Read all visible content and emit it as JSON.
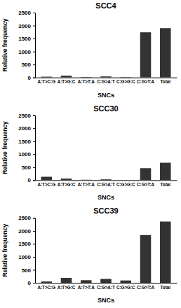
{
  "chart_data": [
    {
      "type": "bar",
      "title": "SCC4",
      "x_label": "SNCs",
      "y_label": "Relative frequency",
      "categories": [
        "A:T>C:G",
        "A:T>G:C",
        "A:T>T:A",
        "C:G>A:T",
        "C:G>G:C",
        "C:G>T:A",
        "Total"
      ],
      "values": [
        30,
        70,
        20,
        40,
        15,
        1740,
        1900
      ],
      "color": "#333333",
      "ylim": [
        0,
        2500
      ],
      "yticks": [
        0,
        500,
        1000,
        1500,
        2000,
        2500
      ],
      "grid": false
    },
    {
      "type": "bar",
      "title": "SCC30",
      "x_label": "SNCs",
      "y_label": "Relative frequency",
      "categories": [
        "A:T>C:G",
        "A:T>G:C",
        "A:T>T:A",
        "C:G>A:T",
        "C:G>G:C",
        "C:G>T:A",
        "Total"
      ],
      "values": [
        130,
        60,
        15,
        30,
        5,
        460,
        670
      ],
      "color": "#333333",
      "ylim": [
        0,
        2500
      ],
      "yticks": [
        0,
        500,
        1000,
        1500,
        2000,
        2500
      ],
      "grid": false
    },
    {
      "type": "bar",
      "title": "SCC39",
      "x_label": "SNCs",
      "y_label": "Relative frequency",
      "categories": [
        "A:T>C:G",
        "A:T>G:C",
        "A:T>T:A",
        "C:G>A:T",
        "C:G>G:C",
        "C:G>T:A",
        "Total"
      ],
      "values": [
        50,
        190,
        100,
        150,
        90,
        1840,
        2360
      ],
      "color": "#333333",
      "ylim": [
        0,
        2500
      ],
      "yticks": [
        0,
        500,
        1000,
        1500,
        2000,
        2500
      ],
      "grid": false
    }
  ]
}
